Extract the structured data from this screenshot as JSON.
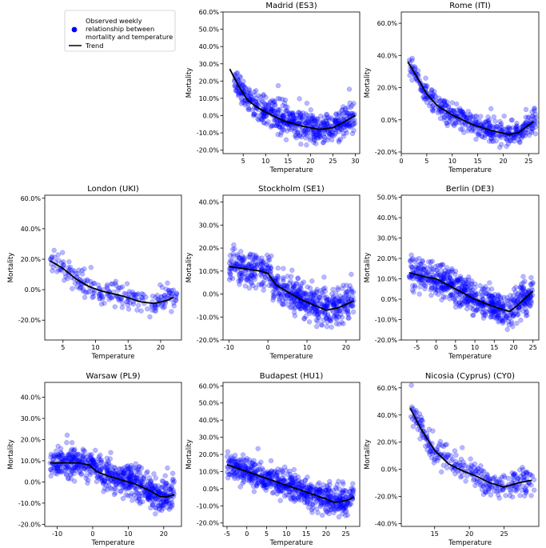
{
  "legend": {
    "items": [
      {
        "label_lines": [
          "Observed weekly",
          "relationship between",
          "mortality and temperature"
        ],
        "marker": "dot",
        "color": "#0000ff"
      },
      {
        "label_lines": [
          "Trend"
        ],
        "marker": "line",
        "color": "#000000"
      }
    ]
  },
  "colors": {
    "points": "#0000ff",
    "trend": "#000000"
  },
  "chart_data": [
    {
      "id": "madrid",
      "type": "scatter",
      "title": "Madrid (ES3)",
      "xlabel": "Temperature",
      "ylabel": "Mortality",
      "xlim": [
        0.5,
        31
      ],
      "ylim": [
        -0.22,
        0.6
      ],
      "xticks": [
        5,
        10,
        15,
        20,
        25,
        30
      ],
      "yticks": [
        -0.2,
        -0.1,
        0,
        0.1,
        0.2,
        0.3,
        0.4,
        0.5,
        0.6
      ],
      "x_range": [
        3,
        30
      ],
      "n_points": 600,
      "noise": 0.06,
      "trend": [
        [
          2,
          0.27
        ],
        [
          4,
          0.17
        ],
        [
          6,
          0.09
        ],
        [
          8,
          0.05
        ],
        [
          10,
          0.02
        ],
        [
          14,
          -0.03
        ],
        [
          18,
          -0.06
        ],
        [
          22,
          -0.08
        ],
        [
          25,
          -0.07
        ],
        [
          28,
          -0.03
        ],
        [
          30,
          0.0
        ]
      ]
    },
    {
      "id": "rome",
      "type": "scatter",
      "title": "Rome (ITI)",
      "xlabel": "Temperature",
      "ylabel": "Mortality",
      "xlim": [
        0,
        27
      ],
      "ylim": [
        -0.21,
        0.67
      ],
      "xticks": [
        0,
        5,
        10,
        15,
        20,
        25
      ],
      "yticks": [
        -0.2,
        0,
        0.2,
        0.4,
        0.6
      ],
      "x_range": [
        1.5,
        26.5
      ],
      "n_points": 450,
      "noise": 0.05,
      "trend": [
        [
          1.3,
          0.36
        ],
        [
          3,
          0.27
        ],
        [
          5,
          0.16
        ],
        [
          7,
          0.09
        ],
        [
          10,
          0.03
        ],
        [
          14,
          -0.03
        ],
        [
          18,
          -0.07
        ],
        [
          21,
          -0.09
        ],
        [
          23,
          -0.08
        ],
        [
          26,
          -0.01
        ]
      ]
    },
    {
      "id": "london",
      "type": "scatter",
      "title": "London (UKI)",
      "xlabel": "Temperature",
      "ylabel": "Mortality",
      "xlim": [
        2.2,
        23.2
      ],
      "ylim": [
        -0.33,
        0.62
      ],
      "xticks": [
        5,
        10,
        15,
        20
      ],
      "yticks": [
        -0.2,
        0,
        0.2,
        0.4,
        0.6
      ],
      "x_range": [
        3,
        22.5
      ],
      "n_points": 230,
      "noise": 0.06,
      "trend": [
        [
          3,
          0.19
        ],
        [
          5,
          0.14
        ],
        [
          7,
          0.07
        ],
        [
          9,
          0.02
        ],
        [
          11,
          -0.01
        ],
        [
          14,
          -0.04
        ],
        [
          17,
          -0.08
        ],
        [
          19,
          -0.09
        ],
        [
          21,
          -0.07
        ],
        [
          22,
          -0.05
        ]
      ]
    },
    {
      "id": "stockholm",
      "type": "scatter",
      "title": "Stockholm (SE1)",
      "xlabel": "Temperature",
      "ylabel": "Mortality",
      "xlim": [
        -11.5,
        23.5
      ],
      "ylim": [
        -0.2,
        0.43
      ],
      "xticks": [
        -10,
        0,
        10,
        20
      ],
      "yticks": [
        -0.2,
        -0.1,
        0,
        0.1,
        0.2,
        0.3,
        0.4
      ],
      "x_range": [
        -10,
        22
      ],
      "n_points": 620,
      "noise": 0.055,
      "trend": [
        [
          -10,
          0.12
        ],
        [
          -6,
          0.11
        ],
        [
          -2,
          0.1
        ],
        [
          0,
          0.09
        ],
        [
          2,
          0.04
        ],
        [
          5,
          0.01
        ],
        [
          8,
          -0.02
        ],
        [
          12,
          -0.05
        ],
        [
          15,
          -0.07
        ],
        [
          18,
          -0.06
        ],
        [
          22,
          -0.03
        ]
      ]
    },
    {
      "id": "berlin",
      "type": "scatter",
      "title": "Berlin (DE3)",
      "xlabel": "Temperature",
      "ylabel": "Mortality",
      "xlim": [
        -9,
        26.5
      ],
      "ylim": [
        -0.2,
        0.51
      ],
      "xticks": [
        -5,
        0,
        5,
        10,
        15,
        20,
        25
      ],
      "yticks": [
        -0.2,
        -0.1,
        0,
        0.1,
        0.2,
        0.3,
        0.4,
        0.5
      ],
      "x_range": [
        -7,
        25
      ],
      "n_points": 680,
      "noise": 0.055,
      "trend": [
        [
          -7,
          0.13
        ],
        [
          -3,
          0.11
        ],
        [
          0,
          0.1
        ],
        [
          3,
          0.07
        ],
        [
          6,
          0.04
        ],
        [
          10,
          0.0
        ],
        [
          14,
          -0.03
        ],
        [
          17,
          -0.05
        ],
        [
          19,
          -0.06
        ],
        [
          21,
          -0.03
        ],
        [
          25,
          0.04
        ]
      ]
    },
    {
      "id": "warsaw",
      "type": "scatter",
      "title": "Warsaw (PL9)",
      "xlabel": "Temperature",
      "ylabel": "Mortality",
      "xlim": [
        -13.5,
        25
      ],
      "ylim": [
        -0.21,
        0.47
      ],
      "xticks": [
        -10,
        0,
        10,
        20
      ],
      "yticks": [
        -0.2,
        -0.1,
        0,
        0.1,
        0.2,
        0.3,
        0.4
      ],
      "x_range": [
        -12,
        23
      ],
      "n_points": 680,
      "noise": 0.05,
      "trend": [
        [
          -12,
          0.09
        ],
        [
          -8,
          0.09
        ],
        [
          -4,
          0.09
        ],
        [
          -1,
          0.08
        ],
        [
          1,
          0.05
        ],
        [
          4,
          0.03
        ],
        [
          8,
          0.01
        ],
        [
          12,
          -0.01
        ],
        [
          16,
          -0.04
        ],
        [
          19,
          -0.07
        ],
        [
          21,
          -0.07
        ],
        [
          23,
          -0.06
        ]
      ]
    },
    {
      "id": "budapest",
      "type": "scatter",
      "title": "Budapest (HU1)",
      "xlabel": "Temperature",
      "ylabel": "Mortality",
      "xlim": [
        -6,
        28.5
      ],
      "ylim": [
        -0.22,
        0.62
      ],
      "xticks": [
        -5,
        0,
        5,
        10,
        15,
        20,
        25
      ],
      "yticks": [
        -0.2,
        -0.1,
        0,
        0.1,
        0.2,
        0.3,
        0.4,
        0.5,
        0.6
      ],
      "x_range": [
        -5,
        27
      ],
      "n_points": 680,
      "noise": 0.055,
      "trend": [
        [
          -5,
          0.14
        ],
        [
          0,
          0.1
        ],
        [
          5,
          0.06
        ],
        [
          10,
          0.02
        ],
        [
          15,
          -0.02
        ],
        [
          20,
          -0.06
        ],
        [
          22,
          -0.08
        ],
        [
          25,
          -0.07
        ],
        [
          27,
          -0.05
        ]
      ]
    },
    {
      "id": "nicosia",
      "type": "scatter",
      "title": "Nicosia (Cyprus) (CY0)",
      "xlabel": "Temperature",
      "ylabel": "Mortality",
      "xlim": [
        10.2,
        30
      ],
      "ylim": [
        -0.42,
        0.64
      ],
      "xticks": [
        15,
        20,
        25
      ],
      "yticks": [
        -0.4,
        -0.2,
        0,
        0.2,
        0.4,
        0.6
      ],
      "x_range": [
        11.5,
        29.5
      ],
      "n_points": 300,
      "noise": 0.07,
      "trend": [
        [
          11.5,
          0.45
        ],
        [
          13,
          0.3
        ],
        [
          15,
          0.14
        ],
        [
          17,
          0.04
        ],
        [
          19,
          -0.01
        ],
        [
          21,
          -0.05
        ],
        [
          23,
          -0.1
        ],
        [
          25,
          -0.13
        ],
        [
          27,
          -0.1
        ],
        [
          29,
          -0.08
        ]
      ]
    }
  ]
}
